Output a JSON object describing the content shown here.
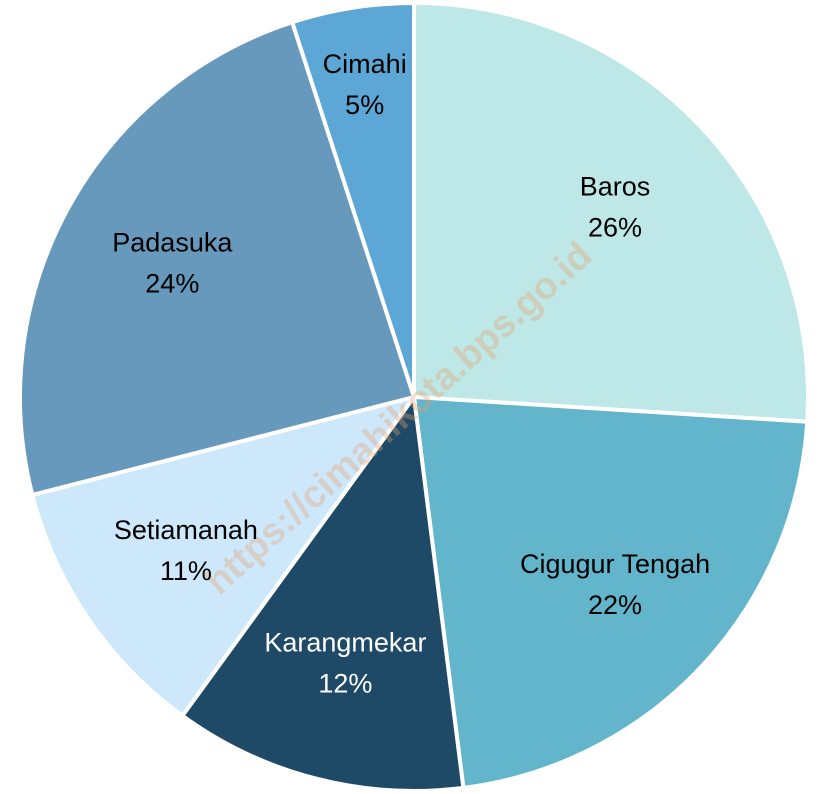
{
  "chart_data": {
    "type": "pie",
    "categories": [
      "Baros",
      "Cigugur Tengah",
      "Karangmekar",
      "Setiamanah",
      "Padasuka",
      "Cimahi"
    ],
    "values": [
      26,
      22,
      12,
      11,
      24,
      5
    ],
    "value_labels": [
      "26%",
      "22%",
      "12%",
      "11%",
      "24%",
      "5%"
    ],
    "colors": [
      "#bee8e8",
      "#63b5cb",
      "#1f4a67",
      "#cde8fb",
      "#6699bb",
      "#5ca7d5"
    ],
    "annotation": "https://cimahikota.bps.go.id"
  }
}
